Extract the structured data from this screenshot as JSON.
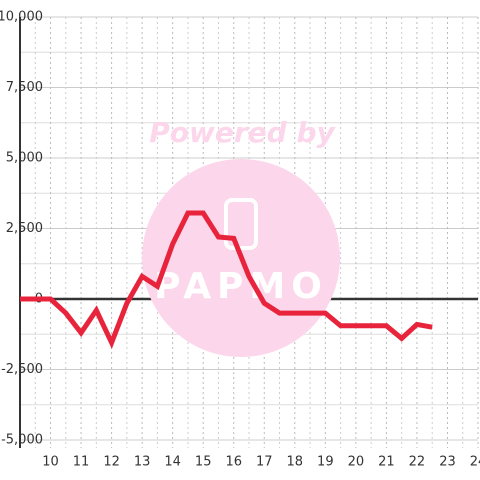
{
  "chart_data": {
    "type": "line",
    "watermark": [
      "Powered by",
      "PAPMO"
    ],
    "x": [
      9,
      10,
      10.5,
      11,
      11.5,
      12,
      12.5,
      13,
      13.5,
      14,
      14.5,
      15,
      15.5,
      16,
      16.5,
      17,
      17.5,
      18,
      18.5,
      19,
      19.5,
      20,
      20.5,
      21,
      21.5,
      22,
      22.5
    ],
    "series": [
      {
        "color": "#e8243c",
        "values": [
          0,
          0,
          -500,
          -1200,
          -400,
          -1550,
          -150,
          800,
          450,
          1950,
          3050,
          3050,
          2200,
          2150,
          800,
          -150,
          -500,
          -500,
          -500,
          -500,
          -950,
          -950,
          -950,
          -950,
          -1400,
          -900,
          -1000
        ]
      }
    ],
    "xlim": [
      9,
      24
    ],
    "xticks": [
      10,
      11,
      12,
      13,
      14,
      15,
      16,
      17,
      18,
      19,
      20,
      21,
      22,
      23,
      24
    ],
    "ylim": [
      -5000,
      10000
    ],
    "yticks": [
      {
        "value": -5000,
        "label": "-5,000"
      },
      {
        "value": -2500,
        "label": "-2,500"
      },
      0,
      {
        "value": 2500,
        "label": "2,500"
      },
      {
        "value": 5000,
        "label": "5,000"
      },
      {
        "value": 7500,
        "label": "7,500"
      },
      {
        "value": 10000,
        "label": "10,000"
      }
    ],
    "grid": true
  }
}
